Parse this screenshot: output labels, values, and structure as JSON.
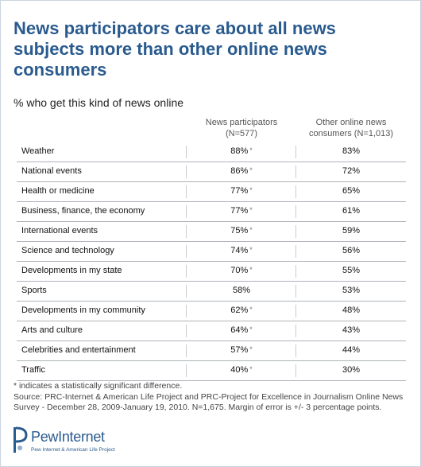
{
  "title": "News participators care about all news subjects more than other online news consumers",
  "subtitle": "% who get this kind of news online",
  "columns": [
    {
      "line1": "News participators",
      "line2": "(N=577)"
    },
    {
      "line1": "Other online news",
      "line2": "consumers (N=1,013)"
    }
  ],
  "note": "* indicates a statistically significant difference.",
  "source": "Source: PRC-Internet & American Life Project and PRC-Project for Excellence in Journalism Online News Survey - December 28, 2009-January 19, 2010. N=1,675. Margin of error is +/- 3 percentage points.",
  "logo": {
    "brand": "PewInternet",
    "tagline": "Pew Internet & American Life Project"
  },
  "colors": {
    "title": "#2a5b8e",
    "rule": "#aeb3b8"
  },
  "chart_data": {
    "type": "table",
    "title": "News participators care about all news subjects more than other online news consumers",
    "subtitle": "% who get this kind of news online",
    "columns": [
      "News participators (N=577)",
      "Other online news consumers (N=1,013)"
    ],
    "rows": [
      {
        "label": "Weather",
        "v1": "88%",
        "sig": true,
        "v2": "83%"
      },
      {
        "label": "National events",
        "v1": "86%",
        "sig": true,
        "v2": "72%"
      },
      {
        "label": "Health or medicine",
        "v1": "77%",
        "sig": true,
        "v2": "65%"
      },
      {
        "label": "Business, finance, the economy",
        "v1": "77%",
        "sig": true,
        "v2": "61%"
      },
      {
        "label": "International events",
        "v1": "75%",
        "sig": true,
        "v2": "59%"
      },
      {
        "label": "Science and technology",
        "v1": "74%",
        "sig": true,
        "v2": "56%"
      },
      {
        "label": "Developments in my state",
        "v1": "70%",
        "sig": true,
        "v2": "55%"
      },
      {
        "label": "Sports",
        "v1": "58%",
        "sig": false,
        "v2": "53%"
      },
      {
        "label": "Developments in my community",
        "v1": "62%",
        "sig": true,
        "v2": "48%"
      },
      {
        "label": "Arts and culture",
        "v1": "64%",
        "sig": true,
        "v2": "43%"
      },
      {
        "label": "Celebrities and entertainment",
        "v1": "57%",
        "sig": true,
        "v2": "44%"
      },
      {
        "label": "Traffic",
        "v1": "40%",
        "sig": true,
        "v2": "30%"
      }
    ]
  }
}
